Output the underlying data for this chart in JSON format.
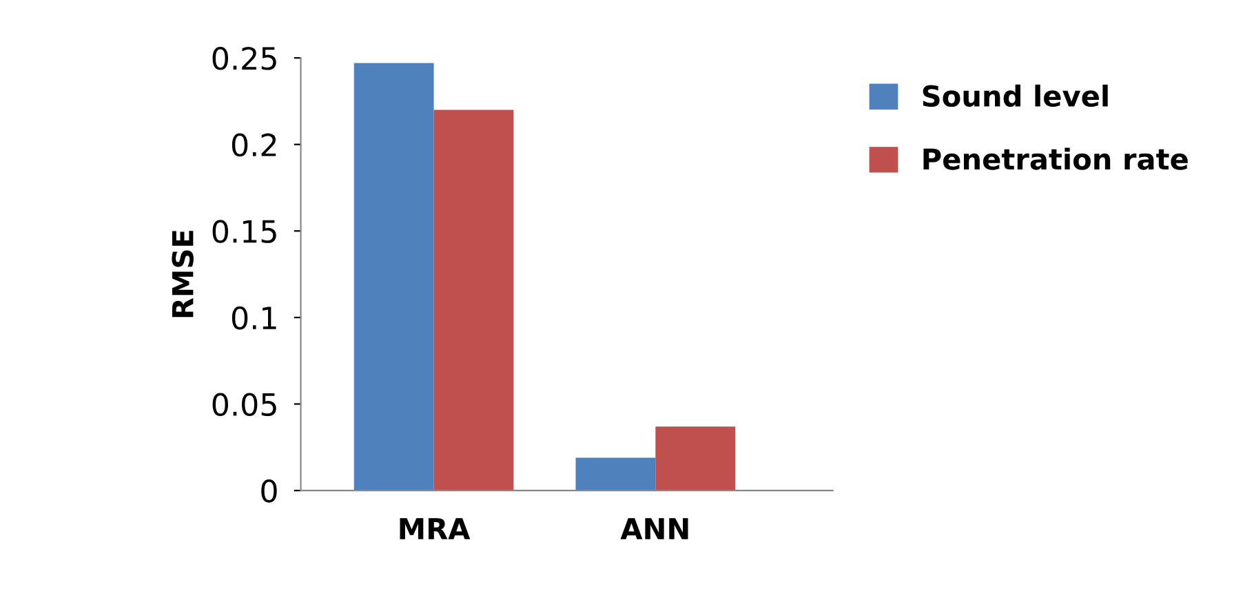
{
  "chart_data": {
    "type": "bar",
    "ylabel": "RMSE",
    "categories": [
      "MRA",
      "ANN"
    ],
    "series": [
      {
        "name": "Sound level",
        "color": "#4f81bd",
        "values": [
          0.247,
          0.019
        ]
      },
      {
        "name": "Penetration rate",
        "color": "#c0504d",
        "values": [
          0.22,
          0.037
        ]
      }
    ],
    "ylim": [
      0,
      0.25
    ],
    "yticks": [
      0,
      0.05,
      0.1,
      0.15,
      0.2,
      0.25
    ],
    "grid": false,
    "legend": "top right"
  }
}
